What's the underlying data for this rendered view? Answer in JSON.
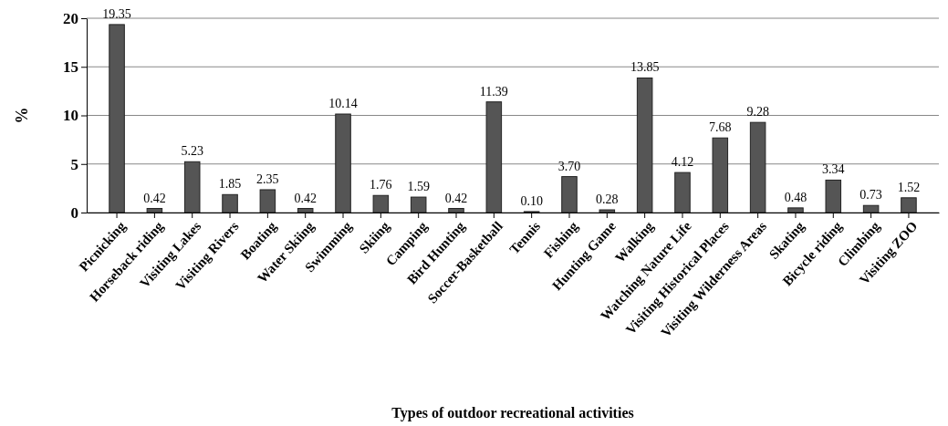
{
  "chart_data": {
    "type": "bar",
    "xlabel": "Types of outdoor recreational activities",
    "ylabel": "%",
    "categories": [
      "Picnicking",
      "Horseback riding",
      "Visiting Lakes",
      "Visiting Rivers",
      "Boating",
      "Water Skiing",
      "Swimming",
      "Skiing",
      "Camping",
      "Bird Hunting",
      "Soccer-Basketball",
      "Tennis",
      "Fishing",
      "Hunting Game",
      "Walking",
      "Watching Nature Life",
      "Visiting Historical Places",
      "Visiting Wilderness Areas",
      "Skating",
      "Bicycle riding",
      "Climbing",
      "Visiting ZOO"
    ],
    "values": [
      19.35,
      0.42,
      5.23,
      1.85,
      2.35,
      0.42,
      10.14,
      1.76,
      1.59,
      0.42,
      11.39,
      0.1,
      3.7,
      0.28,
      13.85,
      4.12,
      7.68,
      9.28,
      0.48,
      3.34,
      0.73,
      1.52
    ],
    "value_labels": [
      "19.35",
      "0.42",
      "5.23",
      "1.85",
      "2.35",
      "0.42",
      "10.14",
      "1.76",
      "1.59",
      "0.42",
      "11.39",
      "0.10",
      "3.70",
      "0.28",
      "13.85",
      "4.12",
      "7.68",
      "9.28",
      "0.48",
      "3.34",
      "0.73",
      "1.52"
    ],
    "color": "#555555",
    "ylim": [
      0,
      20
    ],
    "yticks": [
      0,
      5,
      10,
      15,
      20
    ],
    "grid": "y"
  }
}
